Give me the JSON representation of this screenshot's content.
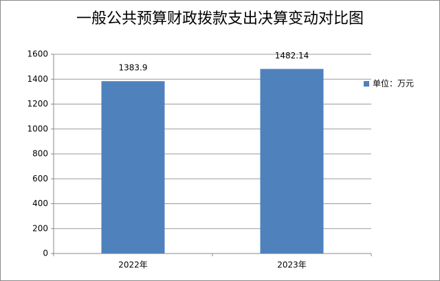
{
  "chart_data": {
    "type": "bar",
    "title": "一般公共预算财政拨款支出决算变动对比图",
    "categories": [
      "2022年",
      "2023年"
    ],
    "series": [
      {
        "name": "单位：万元",
        "color": "#4f81bd",
        "values": [
          1383.9,
          1482.14
        ]
      }
    ],
    "ylim": [
      0,
      1600
    ],
    "yticks": [
      0,
      200,
      400,
      600,
      800,
      1000,
      1200,
      1400,
      1600
    ],
    "grid": true,
    "legend": "right"
  }
}
